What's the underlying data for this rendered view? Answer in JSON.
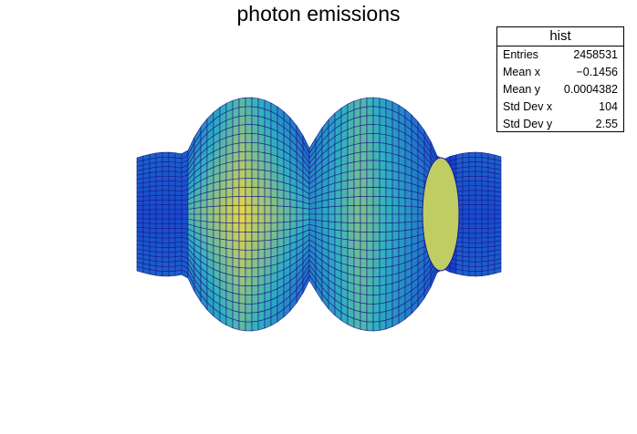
{
  "title": "photon emissions",
  "stats": {
    "name": "hist",
    "rows": [
      {
        "label": "Entries",
        "value": "2458531"
      },
      {
        "label": "Mean x",
        "value": "−0.1456"
      },
      {
        "label": "Mean y",
        "value": "0.0004382"
      },
      {
        "label": "Std Dev x",
        "value": "104"
      },
      {
        "label": "Std Dev y",
        "value": "2.55"
      }
    ]
  },
  "chart_data": {
    "type": "surface",
    "title": "photon emissions",
    "description_of_shape": "two coaxial toroidal lobes with flared cylindrical ends (polar surface plot of a 2D histogram)",
    "colors": {
      "high": "#ffd93a",
      "mid": "#2eb0c0",
      "low": "#1440d0",
      "mesh": "#1a1a8c"
    },
    "axes_visible": false
  }
}
